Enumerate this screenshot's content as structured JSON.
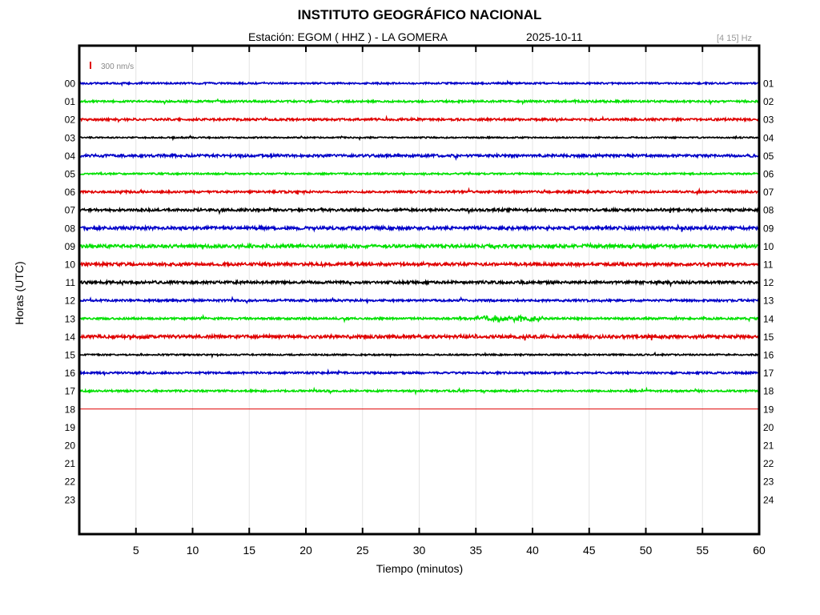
{
  "header": {
    "title": "INSTITUTO GEOGRÁFICO NACIONAL",
    "station": "Estación:  EGOM ( HHZ ) - LA GOMERA",
    "date": "2025-10-11",
    "band": "[4 15] Hz",
    "scale_label": "300 nm/s"
  },
  "chart_data": {
    "type": "line",
    "title": "INSTITUTO GEOGRÁFICO NACIONAL",
    "xlabel": "Tiempo (minutos)",
    "ylabel": "Horas (UTC)",
    "xlim": [
      0,
      60
    ],
    "xticks": [
      "5",
      "10",
      "15",
      "20",
      "25",
      "30",
      "35",
      "40",
      "45",
      "50",
      "55",
      "60"
    ],
    "grid": true,
    "left_labels": [
      "00",
      "01",
      "02",
      "03",
      "04",
      "05",
      "06",
      "07",
      "08",
      "09",
      "10",
      "11",
      "12",
      "13",
      "14",
      "15",
      "16",
      "17",
      "18",
      "19",
      "20",
      "21",
      "22",
      "23"
    ],
    "right_labels": [
      "01",
      "02",
      "03",
      "04",
      "05",
      "06",
      "07",
      "08",
      "09",
      "10",
      "11",
      "12",
      "13",
      "14",
      "15",
      "16",
      "17",
      "18",
      "19",
      "20",
      "21",
      "22",
      "23",
      "24"
    ],
    "traces": [
      {
        "hour": "00",
        "color": "#0000c8",
        "noise": 1.0,
        "end_min": 60
      },
      {
        "hour": "01",
        "color": "#00e000",
        "noise": 1.2,
        "end_min": 60
      },
      {
        "hour": "02",
        "color": "#e00000",
        "noise": 1.3,
        "end_min": 60
      },
      {
        "hour": "03",
        "color": "#000000",
        "noise": 0.8,
        "end_min": 60
      },
      {
        "hour": "04",
        "color": "#0000c8",
        "noise": 1.6,
        "end_min": 60
      },
      {
        "hour": "05",
        "color": "#00e000",
        "noise": 1.0,
        "end_min": 60
      },
      {
        "hour": "06",
        "color": "#e00000",
        "noise": 1.3,
        "end_min": 60
      },
      {
        "hour": "07",
        "color": "#000000",
        "noise": 1.5,
        "end_min": 60
      },
      {
        "hour": "08",
        "color": "#0000c8",
        "noise": 1.9,
        "end_min": 60
      },
      {
        "hour": "09",
        "color": "#00e000",
        "noise": 2.0,
        "end_min": 60
      },
      {
        "hour": "10",
        "color": "#e00000",
        "noise": 1.8,
        "end_min": 60
      },
      {
        "hour": "11",
        "color": "#000000",
        "noise": 1.6,
        "end_min": 60
      },
      {
        "hour": "12",
        "color": "#0000c8",
        "noise": 1.3,
        "end_min": 60
      },
      {
        "hour": "13",
        "color": "#00e000",
        "noise": 1.2,
        "end_min": 60,
        "event": {
          "start_min": 35,
          "end_min": 41,
          "amp": 3
        }
      },
      {
        "hour": "14",
        "color": "#e00000",
        "noise": 1.9,
        "end_min": 60
      },
      {
        "hour": "15",
        "color": "#000000",
        "noise": 0.9,
        "end_min": 60
      },
      {
        "hour": "16",
        "color": "#0000c8",
        "noise": 1.2,
        "end_min": 60
      },
      {
        "hour": "17",
        "color": "#00e000",
        "noise": 1.1,
        "end_min": 60
      },
      {
        "hour": "18",
        "color": "#e00000",
        "noise": 0.0,
        "end_min": 60
      }
    ]
  }
}
